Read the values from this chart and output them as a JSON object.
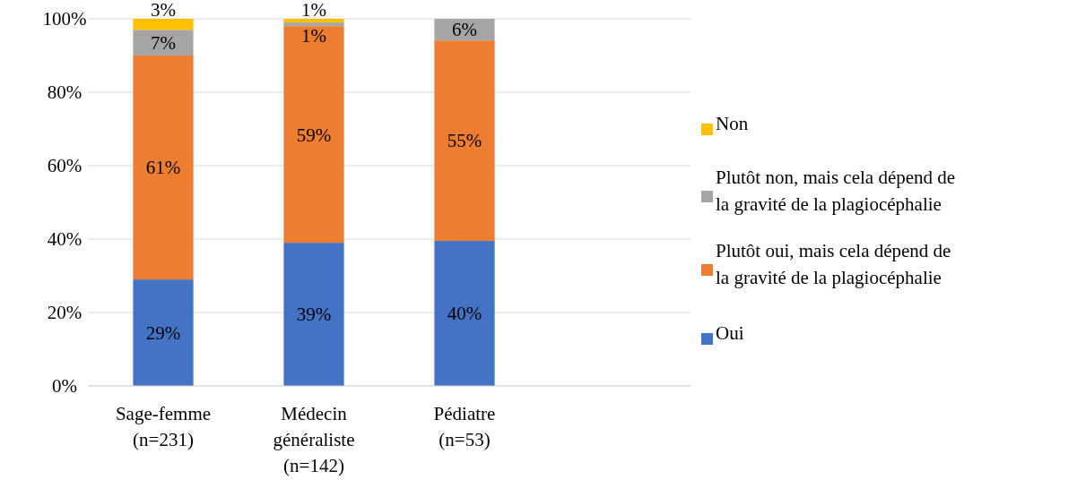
{
  "chart_data": {
    "type": "bar",
    "stacked": true,
    "categories": [
      "Sage-femme (n=231)",
      "Médecin généraliste (n=142)",
      "Pédiatre (n=53)"
    ],
    "series": [
      {
        "name": "Oui",
        "color": "#4472c4",
        "values": [
          29,
          39,
          39.5
        ],
        "value_labels": [
          "29%",
          "39%",
          "40%"
        ]
      },
      {
        "name": "Plutôt oui, mais cela dépend de la gravité de la plagiocéphalie",
        "color": "#ed7d31",
        "values": [
          61,
          59,
          54.6
        ],
        "value_labels": [
          "61%",
          "59%",
          "55%"
        ]
      },
      {
        "name": "Plutôt non, mais cela dépend de la gravité de la plagiocéphalie",
        "color": "#a5a5a5",
        "values": [
          7,
          1,
          5.9
        ],
        "value_labels": [
          "7%",
          "1%",
          "6%"
        ]
      },
      {
        "name": "Non",
        "color": "#ffc000",
        "values": [
          3,
          1,
          0
        ],
        "value_labels": [
          "3%",
          "1%",
          null
        ]
      }
    ],
    "ylim": [
      0,
      100
    ],
    "yticks": [
      {
        "value": 0,
        "label": "0%"
      },
      {
        "value": 20,
        "label": "20%"
      },
      {
        "value": 40,
        "label": "40%"
      },
      {
        "value": 60,
        "label": "60%"
      },
      {
        "value": 80,
        "label": "80%"
      },
      {
        "value": 100,
        "label": "100%"
      }
    ],
    "grid": "y",
    "legend": "right"
  }
}
